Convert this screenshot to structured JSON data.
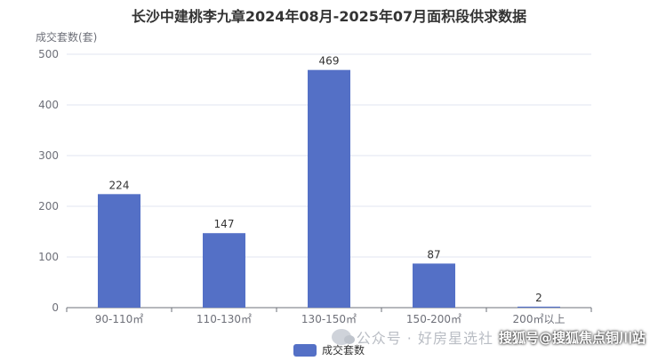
{
  "chart_data": {
    "type": "bar",
    "title": "长沙中建桃李九章2024年08月-2025年07月面积段供求数据",
    "ylabel": "成交套数(套)",
    "categories": [
      "90-110㎡",
      "110-130㎡",
      "130-150㎡",
      "150-200㎡",
      "200㎡以上"
    ],
    "series": [
      {
        "name": "成交套数",
        "values": [
          224,
          147,
          469,
          87,
          2
        ]
      }
    ],
    "ylim": [
      0,
      500
    ],
    "yticks": [
      0,
      100,
      200,
      300,
      400,
      500
    ],
    "grid": true,
    "legend": "bottom-center",
    "colors": {
      "bar": "#5470c6",
      "grid": "#e0e6f1",
      "axis": "#6e7079",
      "label": "#333333"
    }
  },
  "watermark": {
    "text1": "公众号 · 好房星选社",
    "text2": "搜狐号@搜狐焦点铜川站"
  }
}
